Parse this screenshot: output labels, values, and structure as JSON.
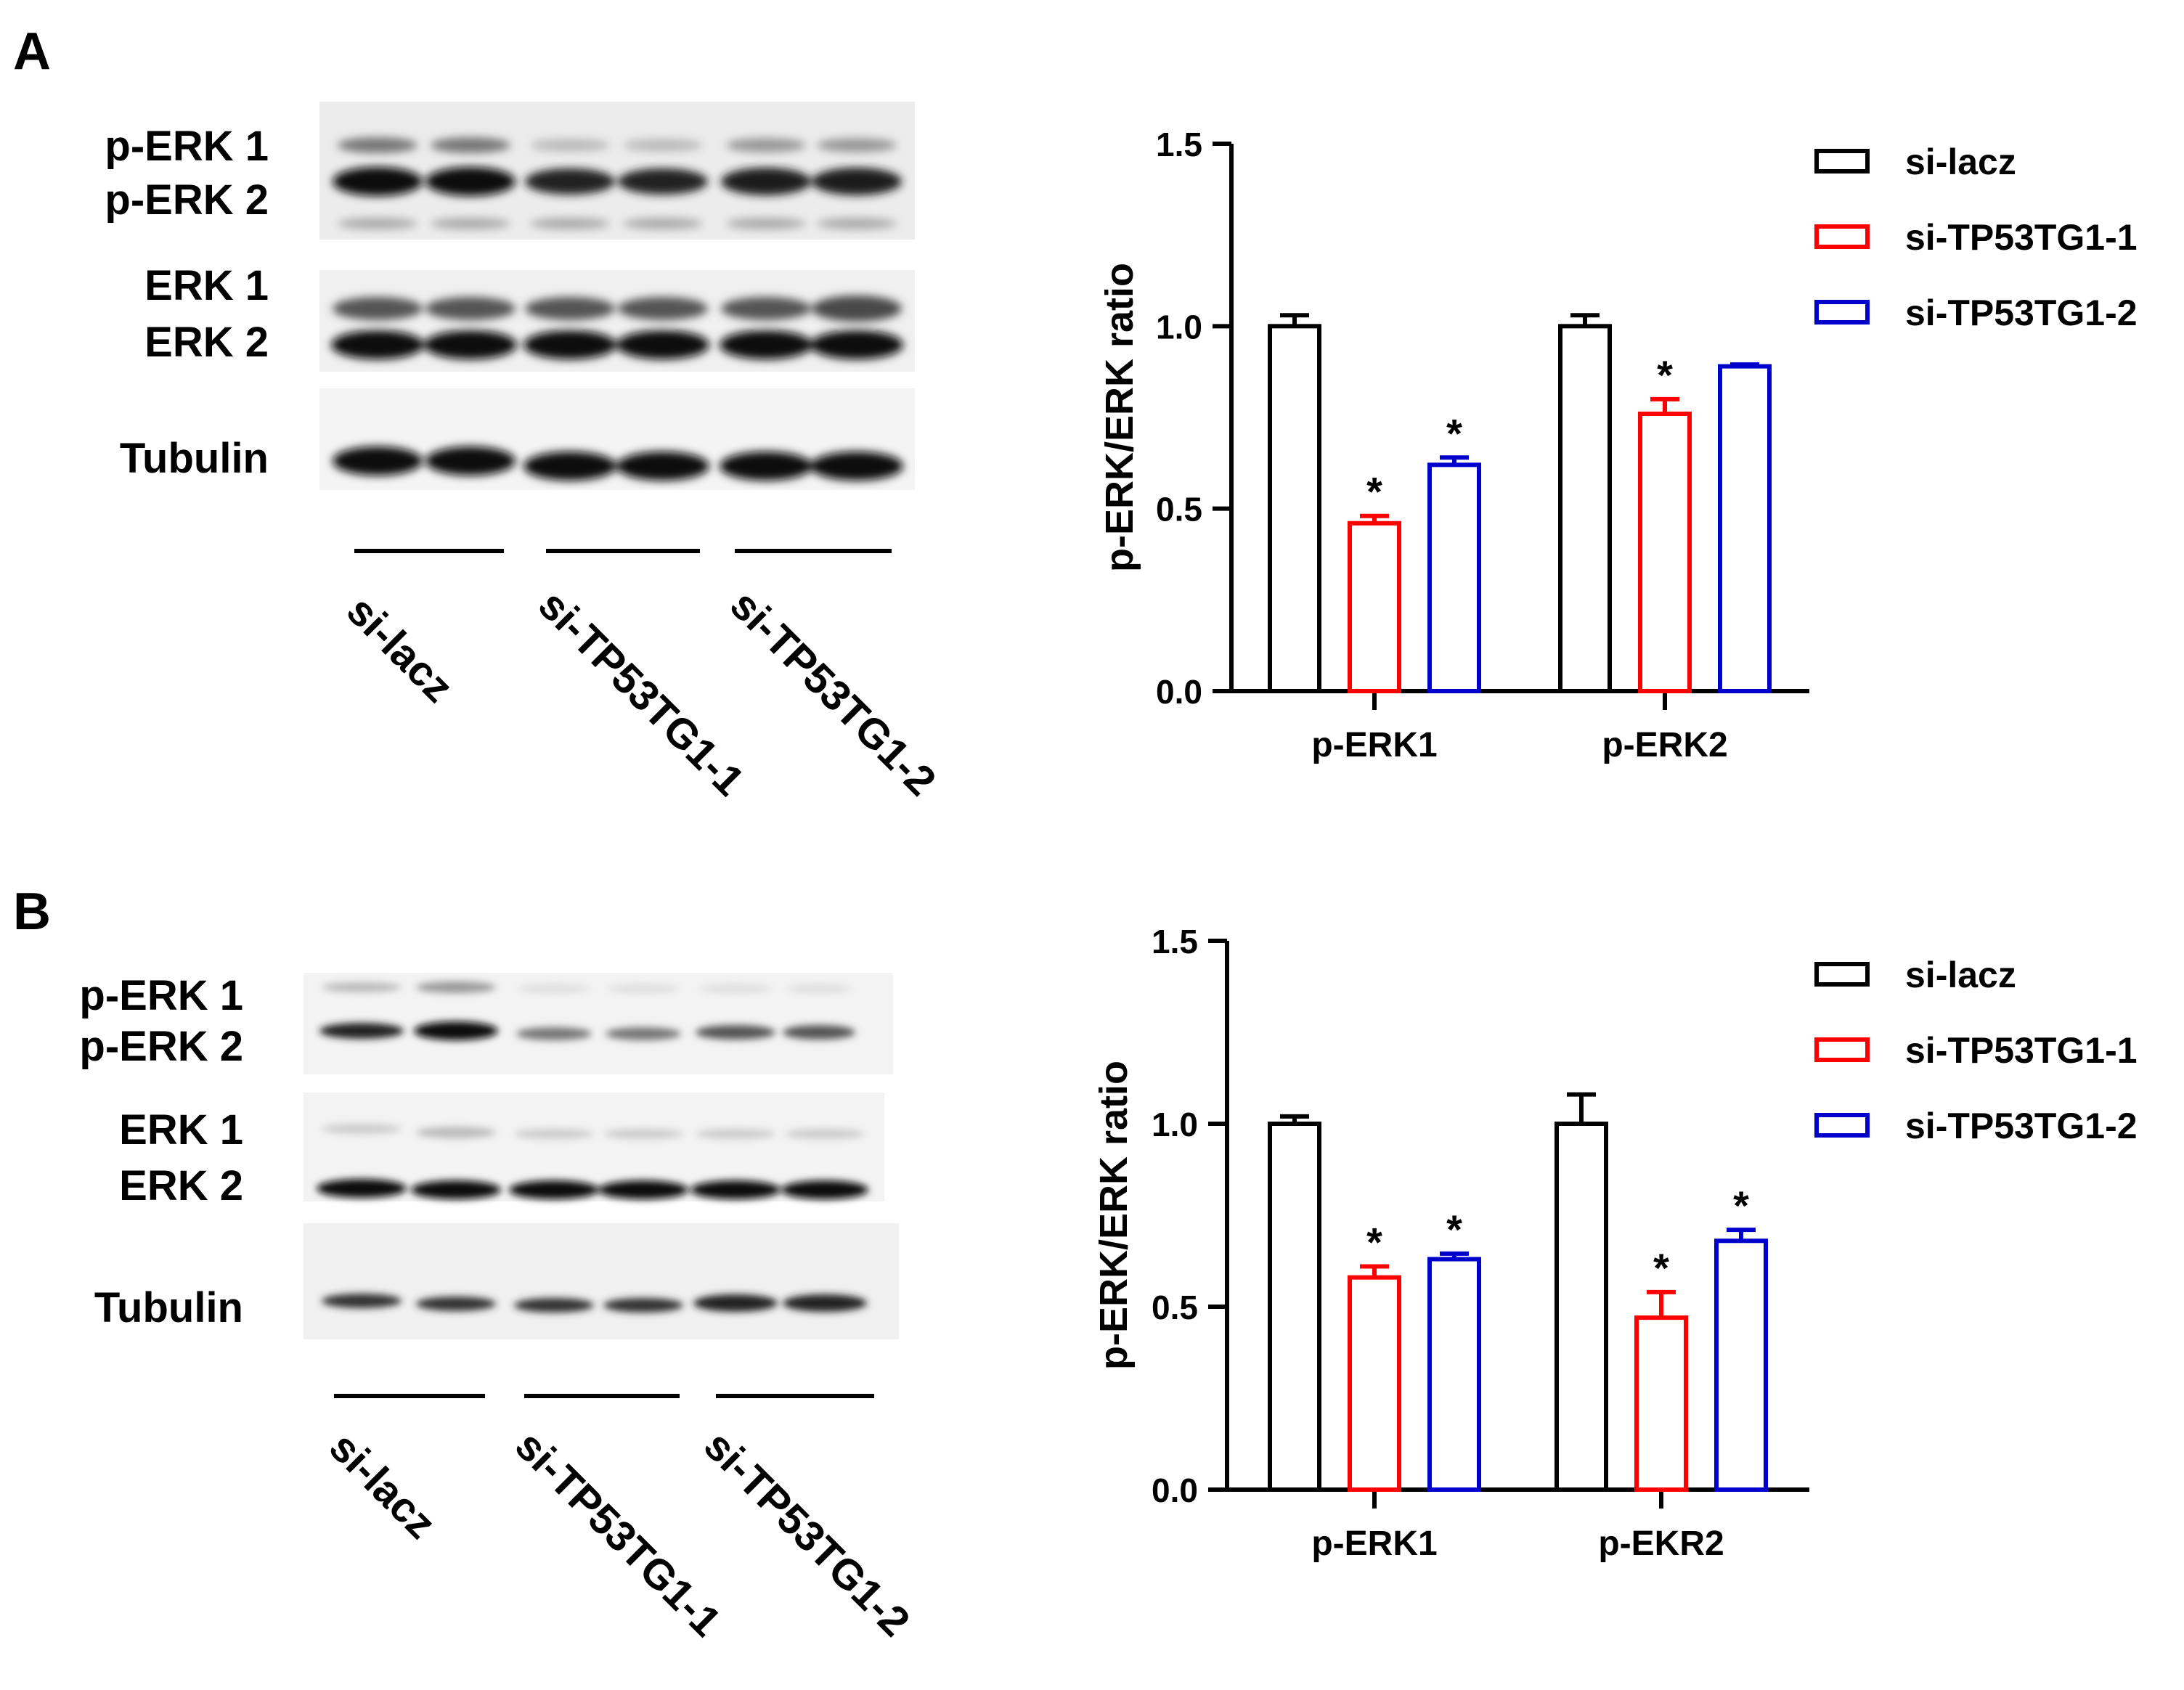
{
  "panels": [
    {
      "letter": "A",
      "blot": {
        "row_labels": [
          "p-ERK 1",
          "p-ERK 2",
          "ERK 1",
          "ERK 2",
          "Tubulin"
        ],
        "group_labels": [
          "si-lacz",
          "si-TP53TG1-1",
          "si-TP53TG1-2"
        ]
      }
    },
    {
      "letter": "B",
      "blot": {
        "row_labels": [
          "p-ERK 1",
          "p-ERK 2",
          "ERK 1",
          "ERK 2",
          "Tubulin"
        ],
        "group_labels": [
          "si-lacz",
          "si-TP53TG1-1",
          "si-TP53TG1-2"
        ]
      }
    }
  ],
  "chart_data": [
    {
      "type": "bar",
      "ylabel": "p-ERK/ERK ratio",
      "ylim": [
        0,
        1.5
      ],
      "yticks": [
        "0.0",
        "0.5",
        "1.0",
        "1.5"
      ],
      "categories": [
        "p-ERK1",
        "p-ERK2"
      ],
      "legend_position": "right",
      "series": [
        {
          "name": "si-lacz",
          "color": "#000000",
          "values": [
            1.0,
            1.0
          ],
          "errors": [
            0.03,
            0.03
          ],
          "sig": [
            false,
            false
          ]
        },
        {
          "name": "si-TP53TG1-1",
          "color": "#ff0000",
          "values": [
            0.46,
            0.76
          ],
          "errors": [
            0.02,
            0.04
          ],
          "sig": [
            true,
            true
          ]
        },
        {
          "name": "si-TP53TG1-2",
          "color": "#0000cc",
          "values": [
            0.62,
            0.89
          ],
          "errors": [
            0.02,
            0.005
          ],
          "sig": [
            true,
            false
          ]
        }
      ],
      "sig_marker": "*"
    },
    {
      "type": "bar",
      "ylabel": "p-ERK/ERK ratio",
      "ylim": [
        0,
        1.5
      ],
      "yticks": [
        "0.0",
        "0.5",
        "1.0",
        "1.5"
      ],
      "categories": [
        "p-ERK1",
        "p-EKR2"
      ],
      "legend_position": "right",
      "series": [
        {
          "name": "si-lacz",
          "color": "#000000",
          "values": [
            1.0,
            1.0
          ],
          "errors": [
            0.02,
            0.08
          ],
          "sig": [
            false,
            false
          ]
        },
        {
          "name": "si-TP53TG1-1",
          "color": "#ff0000",
          "values": [
            0.58,
            0.47
          ],
          "errors": [
            0.03,
            0.07
          ],
          "sig": [
            true,
            true
          ]
        },
        {
          "name": "si-TP53TG1-2",
          "color": "#0000cc",
          "values": [
            0.63,
            0.68
          ],
          "errors": [
            0.015,
            0.03
          ],
          "sig": [
            true,
            true
          ]
        }
      ],
      "sig_marker": "*"
    }
  ]
}
